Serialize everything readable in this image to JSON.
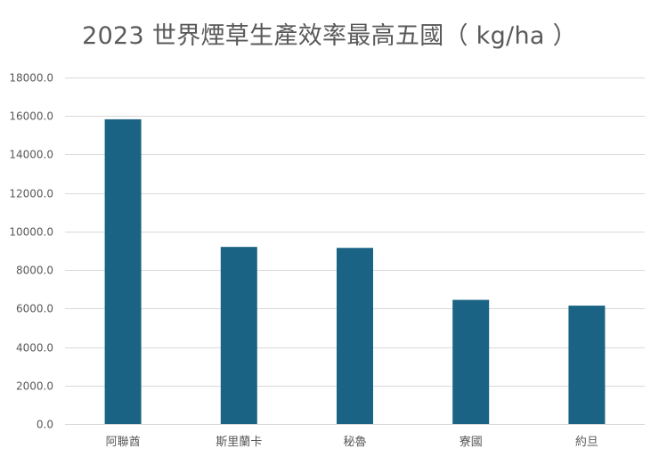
{
  "chart_data": {
    "type": "bar",
    "title": "2023 世界煙草生產效率最高五國（ kg/ha ）",
    "categories": [
      "阿聯酋",
      "斯里蘭卡",
      "秘魯",
      "寮國",
      "約旦"
    ],
    "values": [
      15830,
      9200,
      9150,
      6450,
      6150
    ],
    "yticks": [
      "0.0",
      "2000.0",
      "4000.0",
      "6000.0",
      "8000.0",
      "10000.0",
      "12000.0",
      "14000.0",
      "16000.0",
      "18000.0"
    ],
    "ylim": [
      0,
      18000
    ],
    "grid": true,
    "legend": "none",
    "bar_color": "#1a6385",
    "grid_color": "#d9d9d9"
  }
}
